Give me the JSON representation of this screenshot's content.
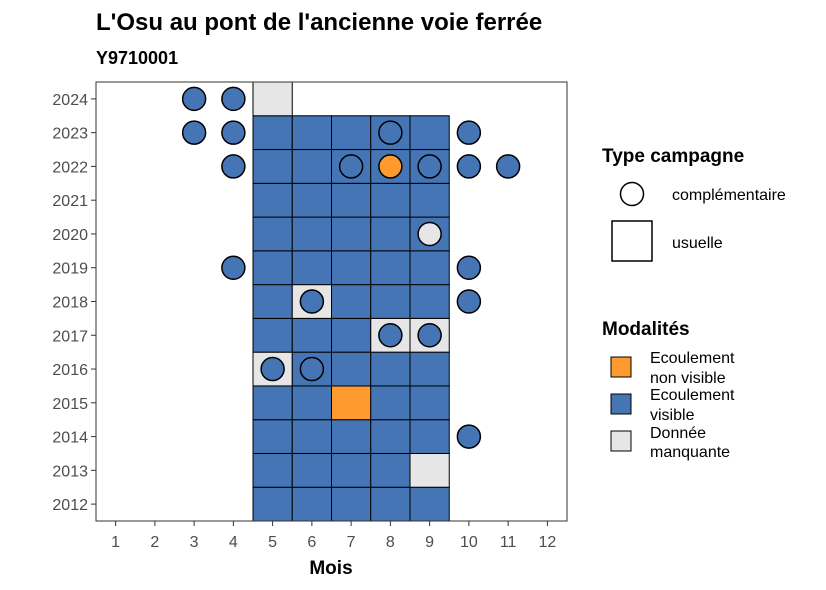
{
  "chart_data": {
    "type": "heatmap",
    "title": "L'Osu au pont de l'ancienne voie ferrée",
    "subtitle": "Y9710001",
    "xlabel": "Mois",
    "ylabel": "",
    "x_ticks": [
      "1",
      "2",
      "3",
      "4",
      "5",
      "6",
      "7",
      "8",
      "9",
      "10",
      "11",
      "12"
    ],
    "y_ticks": [
      "2012",
      "2013",
      "2014",
      "2015",
      "2016",
      "2017",
      "2018",
      "2019",
      "2020",
      "2021",
      "2022",
      "2023",
      "2024"
    ],
    "xlim": [
      0.5,
      12.5
    ],
    "ylim": [
      2011.5,
      2024.5
    ],
    "colors": {
      "ecoulement_non_visible": "#fe9a2e",
      "ecoulement_visible": "#4575b4",
      "donnee_manquante": "#e6e6e6",
      "outline": "#000000",
      "panel_border": "#333333"
    },
    "usuelle_cells": [
      {
        "year": 2012,
        "values": [
          "V",
          "V",
          "V",
          "V",
          "V"
        ]
      },
      {
        "year": 2013,
        "values": [
          "V",
          "V",
          "V",
          "V",
          "M"
        ]
      },
      {
        "year": 2014,
        "values": [
          "V",
          "V",
          "V",
          "V",
          "V"
        ]
      },
      {
        "year": 2015,
        "values": [
          "V",
          "V",
          "N",
          "V",
          "V"
        ]
      },
      {
        "year": 2016,
        "values": [
          "M",
          "V",
          "V",
          "V",
          "V"
        ]
      },
      {
        "year": 2017,
        "values": [
          "V",
          "V",
          "V",
          "M",
          "M"
        ]
      },
      {
        "year": 2018,
        "values": [
          "V",
          "M",
          "V",
          "V",
          "V"
        ]
      },
      {
        "year": 2019,
        "values": [
          "V",
          "V",
          "V",
          "V",
          "V"
        ]
      },
      {
        "year": 2020,
        "values": [
          "V",
          "V",
          "V",
          "V",
          "V"
        ]
      },
      {
        "year": 2021,
        "values": [
          "V",
          "V",
          "V",
          "V",
          "V"
        ]
      },
      {
        "year": 2022,
        "values": [
          "V",
          "V",
          "V",
          "V",
          "V"
        ]
      },
      {
        "year": 2023,
        "values": [
          "V",
          "V",
          "V",
          "V",
          "V"
        ]
      },
      {
        "year": 2024,
        "values": [
          "M",
          "",
          "",
          "",
          ""
        ]
      }
    ],
    "usuelle_months": [
      5,
      6,
      7,
      8,
      9
    ],
    "complementaire_points": [
      {
        "month": 3,
        "year": 2024,
        "modalite": "V"
      },
      {
        "month": 4,
        "year": 2024,
        "modalite": "V"
      },
      {
        "month": 3,
        "year": 2023,
        "modalite": "V"
      },
      {
        "month": 4,
        "year": 2023,
        "modalite": "V"
      },
      {
        "month": 8,
        "year": 2023,
        "modalite": "V"
      },
      {
        "month": 10,
        "year": 2023,
        "modalite": "V"
      },
      {
        "month": 4,
        "year": 2022,
        "modalite": "V"
      },
      {
        "month": 7,
        "year": 2022,
        "modalite": "V"
      },
      {
        "month": 8,
        "year": 2022,
        "modalite": "N"
      },
      {
        "month": 9,
        "year": 2022,
        "modalite": "V"
      },
      {
        "month": 10,
        "year": 2022,
        "modalite": "V"
      },
      {
        "month": 11,
        "year": 2022,
        "modalite": "V"
      },
      {
        "month": 9,
        "year": 2020,
        "modalite": "M"
      },
      {
        "month": 4,
        "year": 2019,
        "modalite": "V"
      },
      {
        "month": 10,
        "year": 2019,
        "modalite": "V"
      },
      {
        "month": 6,
        "year": 2018,
        "modalite": "V"
      },
      {
        "month": 10,
        "year": 2018,
        "modalite": "V"
      },
      {
        "month": 8,
        "year": 2017,
        "modalite": "V"
      },
      {
        "month": 9,
        "year": 2017,
        "modalite": "V"
      },
      {
        "month": 5,
        "year": 2016,
        "modalite": "V"
      },
      {
        "month": 6,
        "year": 2016,
        "modalite": "V"
      },
      {
        "month": 10,
        "year": 2014,
        "modalite": "V"
      }
    ],
    "legend": {
      "placement": "right",
      "type_title": "Type campagne",
      "type_items": [
        "complémentaire",
        "usuelle"
      ],
      "mod_title": "Modalités",
      "mod_items": [
        {
          "key": "N",
          "line1": "Ecoulement",
          "line2": "non visible"
        },
        {
          "key": "V",
          "line1": "Ecoulement",
          "line2": "visible"
        },
        {
          "key": "M",
          "line1": "Donnée",
          "line2": "manquante"
        }
      ]
    }
  }
}
